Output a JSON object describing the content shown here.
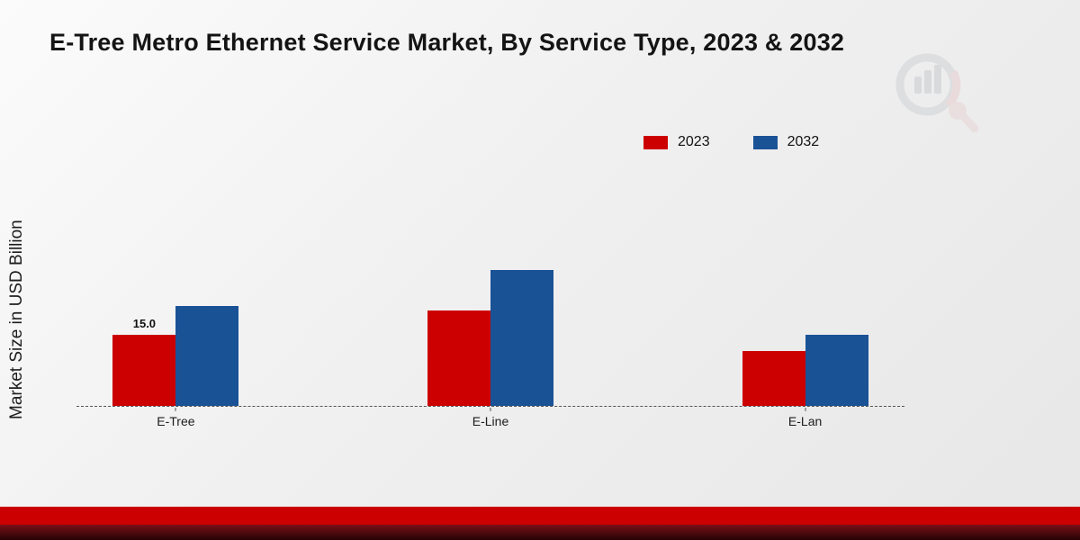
{
  "title": "E-Tree Metro Ethernet Service Market, By Service Type, 2023 & 2032",
  "y_axis_label": "Market Size in USD Billion",
  "legend": [
    {
      "label": "2023",
      "color": "#cc0000"
    },
    {
      "label": "2032",
      "color": "#1a5296"
    }
  ],
  "colors": {
    "accent_red": "#cc0000",
    "series_blue": "#1a5296",
    "band_dark_top": "#7a1016",
    "band_dark_bottom": "#240406"
  },
  "chart_data": {
    "type": "bar",
    "categories": [
      "E-Tree",
      "E-Line",
      "E-Lan"
    ],
    "series": [
      {
        "name": "2023",
        "color": "#cc0000",
        "values": [
          15.0,
          20.0,
          11.5
        ]
      },
      {
        "name": "2032",
        "color": "#1a5296",
        "values": [
          21.0,
          28.5,
          15.0
        ]
      }
    ],
    "annotations": [
      {
        "category": "E-Tree",
        "series": "2023",
        "text": "15.0"
      }
    ],
    "title": "E-Tree Metro Ethernet Service Market, By Service Type, 2023 & 2032",
    "xlabel": "",
    "ylabel": "Market Size in USD Billion",
    "ylim": [
      0,
      30
    ],
    "grid": false,
    "legend_position": "top-right",
    "baseline_style": "dashed"
  }
}
